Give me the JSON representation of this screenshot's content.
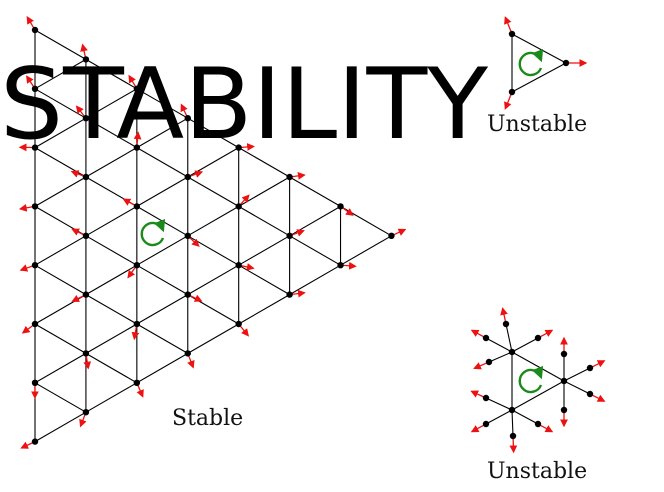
{
  "title": "STABILITY",
  "panels": {
    "large_triangle": {
      "label": "Stable"
    },
    "small_triangle": {
      "label": "Unstable"
    },
    "small_star": {
      "label": "Unstable"
    }
  },
  "colors": {
    "edge": "#000000",
    "node": "#000000",
    "force_arrow": "#ee1111",
    "rotation_arrow": "#1a8a1a",
    "background": "#ffffff"
  },
  "icons": {
    "force_arrow": "red-arrow-icon",
    "rotation": "green-circular-arrow-icon"
  }
}
